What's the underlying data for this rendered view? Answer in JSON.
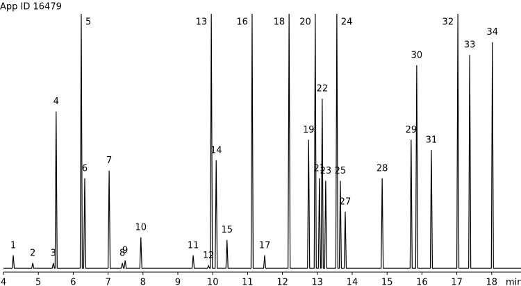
{
  "chart_data": {
    "type": "line",
    "title": "App ID 16479",
    "x_label": "min",
    "xlim": [
      4,
      18.85
    ],
    "ylim": [
      0,
      100
    ],
    "xticks": [
      4,
      5,
      6,
      7,
      8,
      9,
      10,
      11,
      12,
      13,
      14,
      15,
      16,
      17,
      18
    ],
    "color": "#000000",
    "x": [
      4.0,
      4.25,
      4.28,
      4.31,
      4.81,
      4.84,
      4.87,
      5.4,
      5.43,
      5.46,
      5.48,
      5.51,
      5.54,
      6.2,
      6.23,
      6.26,
      6.3,
      6.33,
      6.36,
      7.0,
      7.03,
      7.06,
      7.38,
      7.41,
      7.44,
      7.46,
      7.49,
      7.52,
      7.91,
      7.94,
      7.97,
      9.41,
      9.44,
      9.47,
      9.85,
      9.88,
      9.91,
      9.93,
      9.96,
      9.99,
      10.07,
      10.1,
      10.13,
      10.38,
      10.41,
      10.44,
      11.1,
      11.13,
      11.16,
      11.46,
      11.49,
      11.52,
      12.16,
      12.19,
      12.22,
      12.72,
      12.75,
      12.78,
      12.91,
      12.94,
      12.97,
      13.03,
      13.06,
      13.09,
      13.11,
      13.14,
      13.17,
      13.21,
      13.24,
      13.27,
      13.53,
      13.56,
      13.59,
      13.63,
      13.66,
      13.69,
      13.77,
      13.8,
      13.83,
      14.83,
      14.86,
      14.89,
      15.66,
      15.69,
      15.72,
      15.82,
      15.85,
      15.88,
      16.24,
      16.27,
      16.3,
      17.0,
      17.03,
      17.06,
      17.34,
      17.37,
      17.4,
      17.99,
      18.02,
      18.05,
      18.85
    ],
    "values": [
      1,
      1,
      6,
      1,
      1,
      3,
      1,
      1,
      3,
      1,
      1,
      62,
      1,
      1,
      100,
      1,
      1,
      36,
      1,
      1,
      39,
      1,
      1,
      3,
      1,
      1,
      4,
      1,
      1,
      13,
      1,
      1,
      6,
      1,
      1,
      2,
      1,
      1,
      100,
      1,
      1,
      43,
      1,
      1,
      12,
      1,
      1,
      100,
      1,
      1,
      6,
      1,
      1,
      100,
      1,
      1,
      51,
      1,
      1,
      100,
      1,
      1,
      36,
      1,
      1,
      67,
      1,
      1,
      35,
      1,
      1,
      100,
      1,
      1,
      35,
      1,
      1,
      23,
      1,
      1,
      36,
      1,
      1,
      51,
      1,
      1,
      80,
      1,
      1,
      47,
      1,
      1,
      100,
      1,
      1,
      84,
      1,
      1,
      89,
      1,
      1
    ],
    "peak_labels": [
      "1",
      "2",
      "3",
      "4",
      "5",
      "6",
      "7",
      "8",
      "9",
      "10",
      "11",
      "12",
      "13",
      "14",
      "15",
      "16",
      "17",
      "18",
      "19",
      "20",
      "21",
      "22",
      "23",
      "24",
      "25",
      "27",
      "28",
      "29",
      "30",
      "31",
      "32",
      "33",
      "34"
    ]
  }
}
